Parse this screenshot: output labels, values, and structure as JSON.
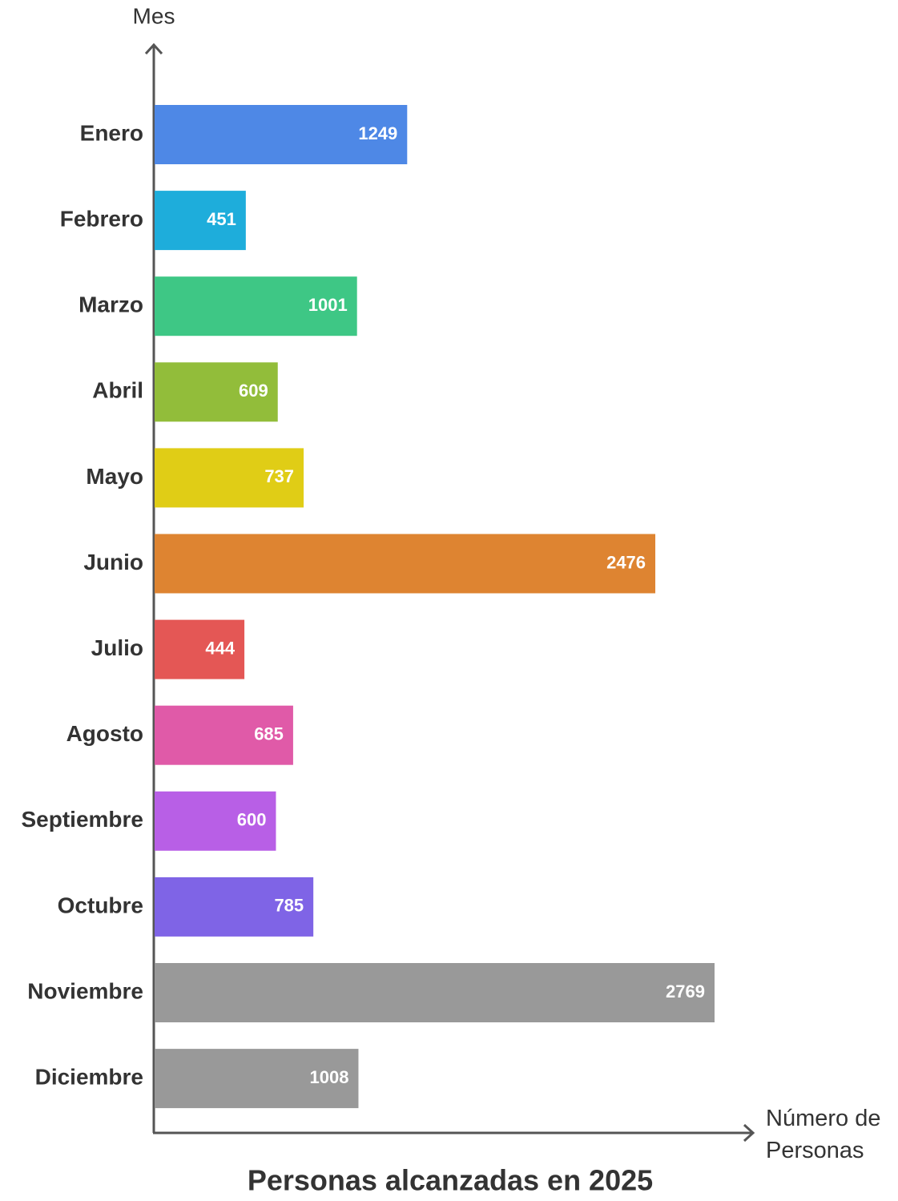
{
  "chart_data": {
    "type": "bar",
    "title": "Personas alcanzadas en 2025",
    "y_label": "Mes",
    "x_label": "Número de Personas",
    "categories": [
      "Enero",
      "Febrero",
      "Marzo",
      "Abril",
      "Mayo",
      "Junio",
      "Julio",
      "Agosto",
      "Septiembre",
      "Octubre",
      "Noviembre",
      "Diciembre"
    ],
    "values": [
      1249,
      451,
      1001,
      609,
      737,
      2476,
      444,
      685,
      600,
      785,
      2769,
      1008
    ],
    "colors": [
      "#4e88e6",
      "#1eaddb",
      "#3ec785",
      "#92bd3a",
      "#e0cd16",
      "#de8431",
      "#e45755",
      "#e05aa8",
      "#b85fe6",
      "#7f64e6",
      "#999999",
      "#999999"
    ]
  }
}
